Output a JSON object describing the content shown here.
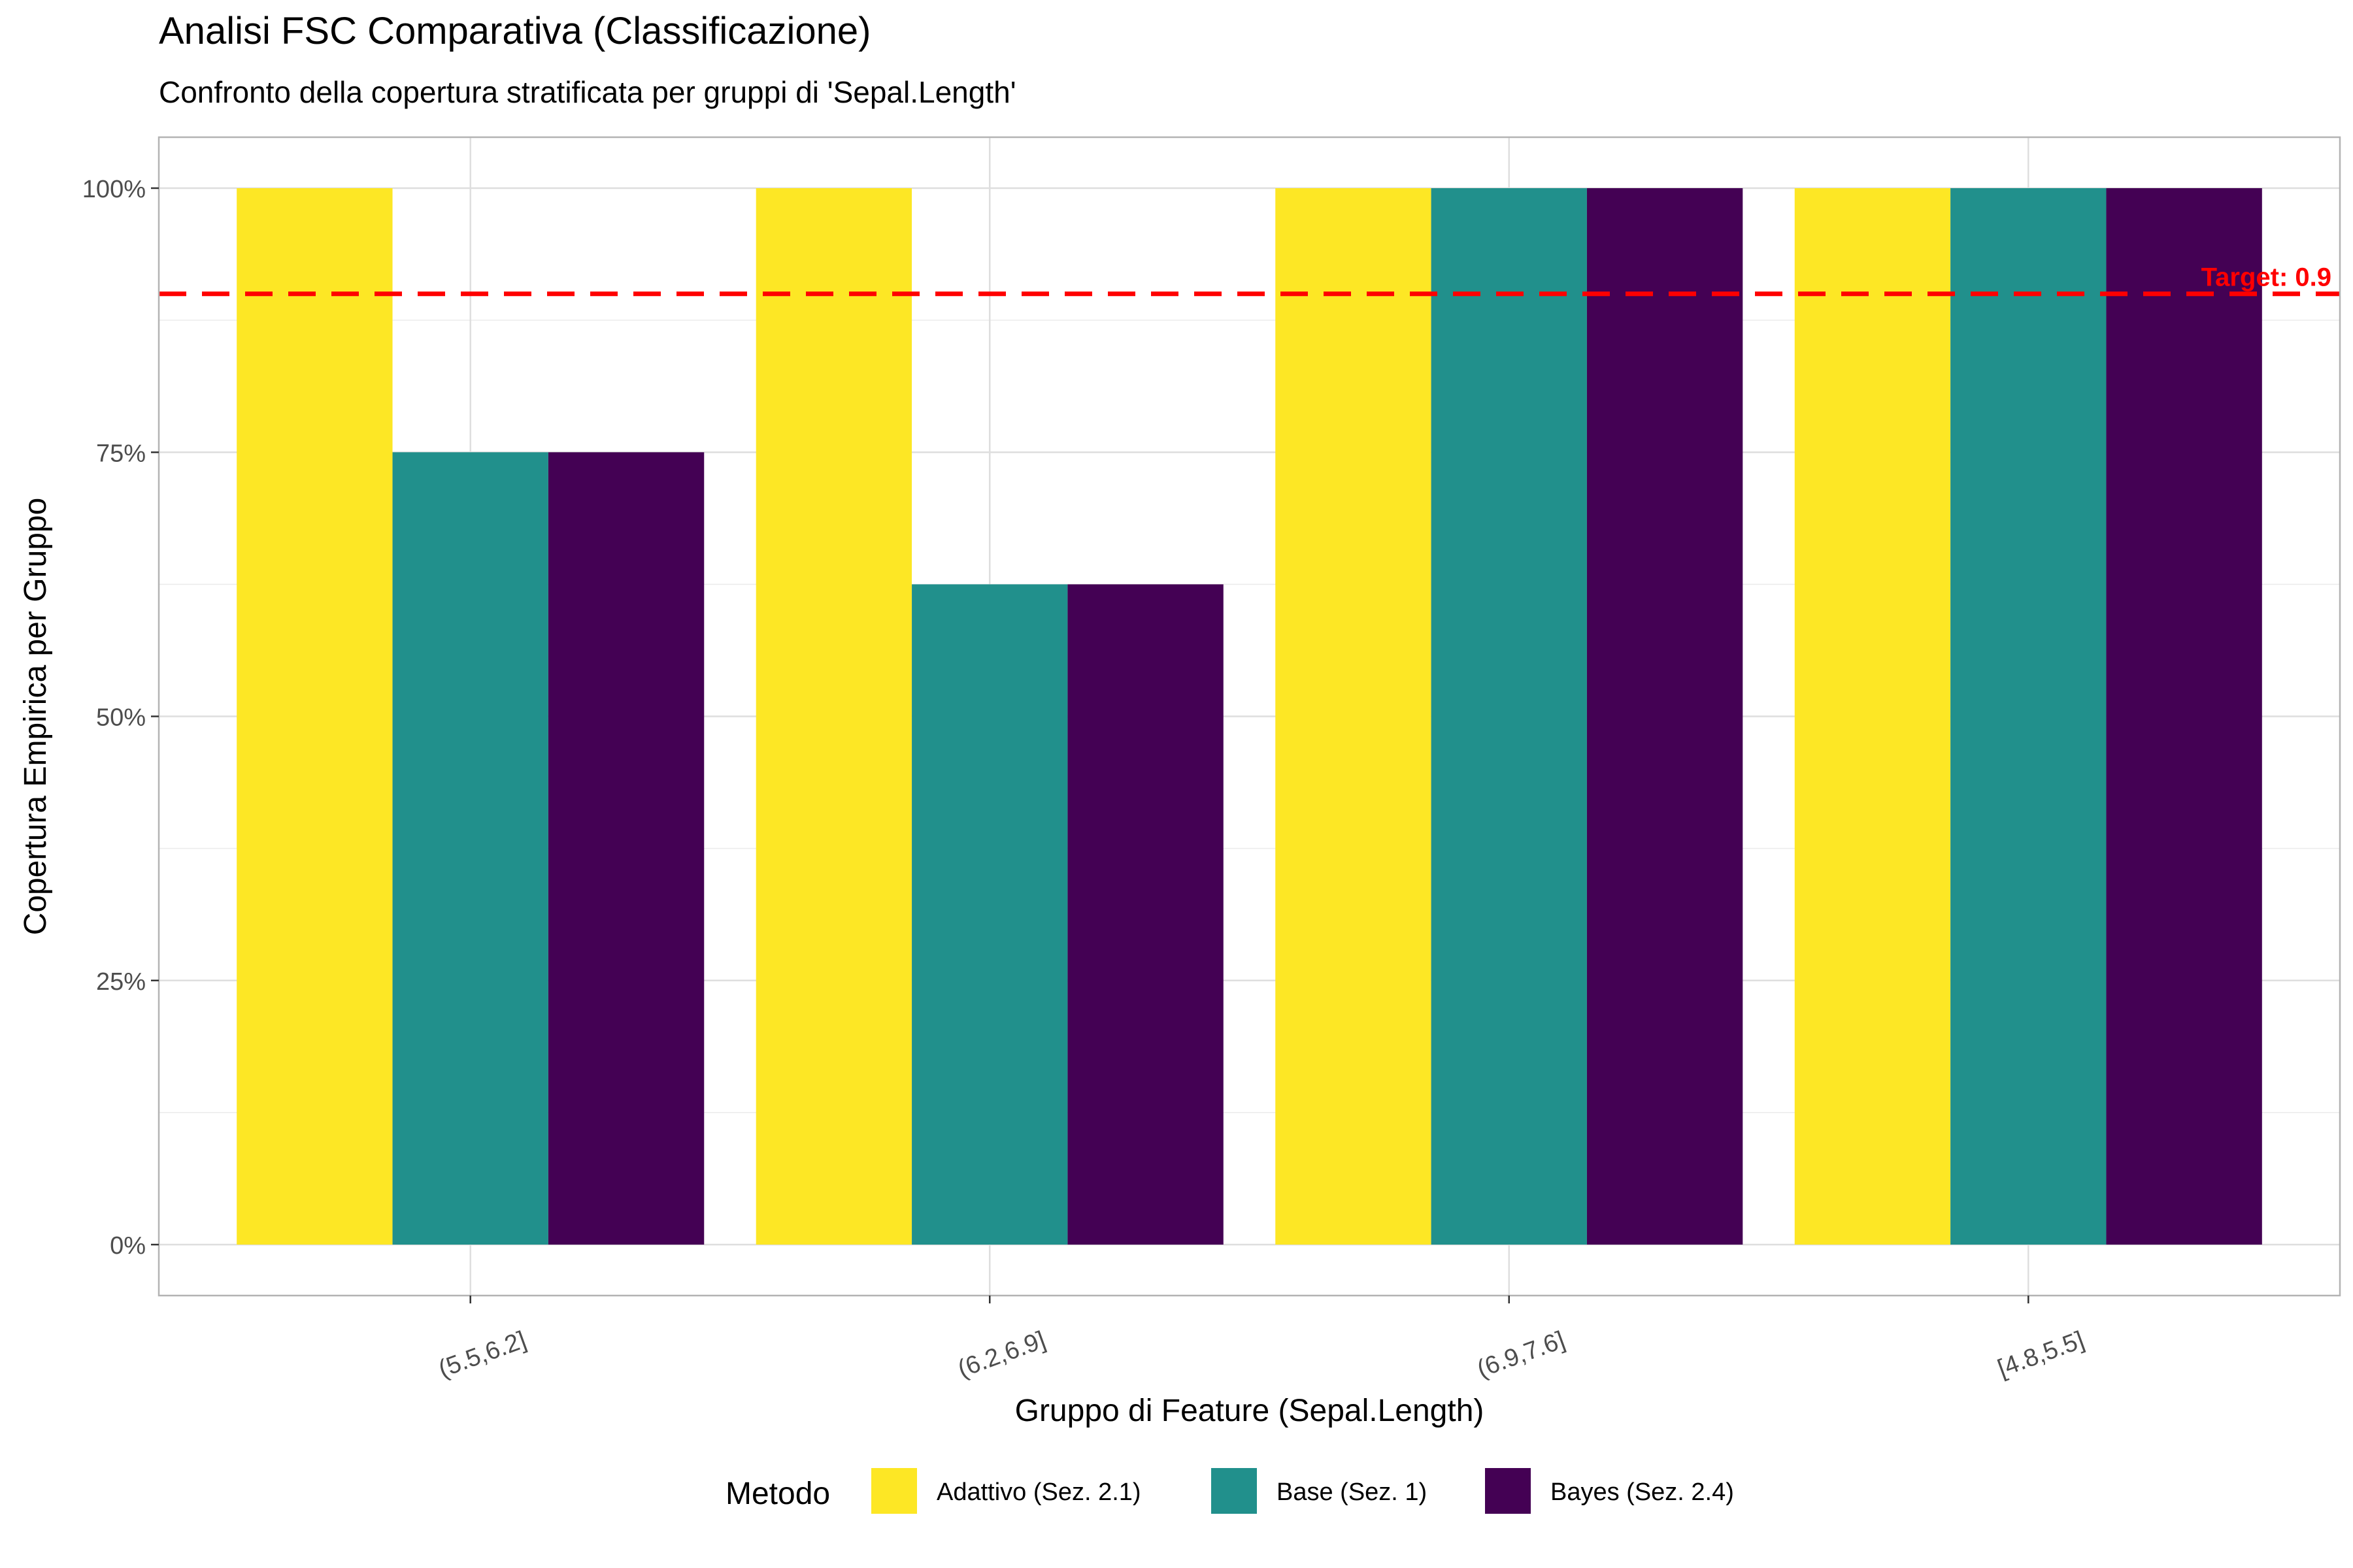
{
  "chart_data": {
    "type": "bar",
    "title": "Analisi FSC Comparativa (Classificazione)",
    "subtitle": "Confronto della copertura stratificata per gruppi di 'Sepal.Length'",
    "xlabel": "Gruppo di Feature (Sepal.Length)",
    "ylabel": "Copertura Empirica per Gruppo",
    "categories": [
      "(5.5,6.2]",
      "(6.2,6.9]",
      "(6.9,7.6]",
      "[4.8,5.5]"
    ],
    "series": [
      {
        "name": "Adattivo (Sez. 2.1)",
        "color": "#FDE725",
        "values": [
          1.0,
          1.0,
          1.0,
          1.0
        ]
      },
      {
        "name": "Base (Sez. 1)",
        "color": "#21908C",
        "values": [
          0.75,
          0.625,
          1.0,
          1.0
        ]
      },
      {
        "name": "Bayes (Sez. 2.4)",
        "color": "#440154",
        "values": [
          0.75,
          0.625,
          1.0,
          1.0
        ]
      }
    ],
    "ylim": [
      0,
      1
    ],
    "yticks": [
      0,
      0.25,
      0.5,
      0.75,
      1.0
    ],
    "ytick_labels": [
      "0%",
      "25%",
      "50%",
      "75%",
      "100%"
    ],
    "grid": true,
    "reference_line": {
      "value": 0.9,
      "label": "Target: 0.9",
      "color": "#FF0000",
      "style": "dashed"
    },
    "legend": {
      "title": "Metodo",
      "position": "bottom"
    }
  }
}
